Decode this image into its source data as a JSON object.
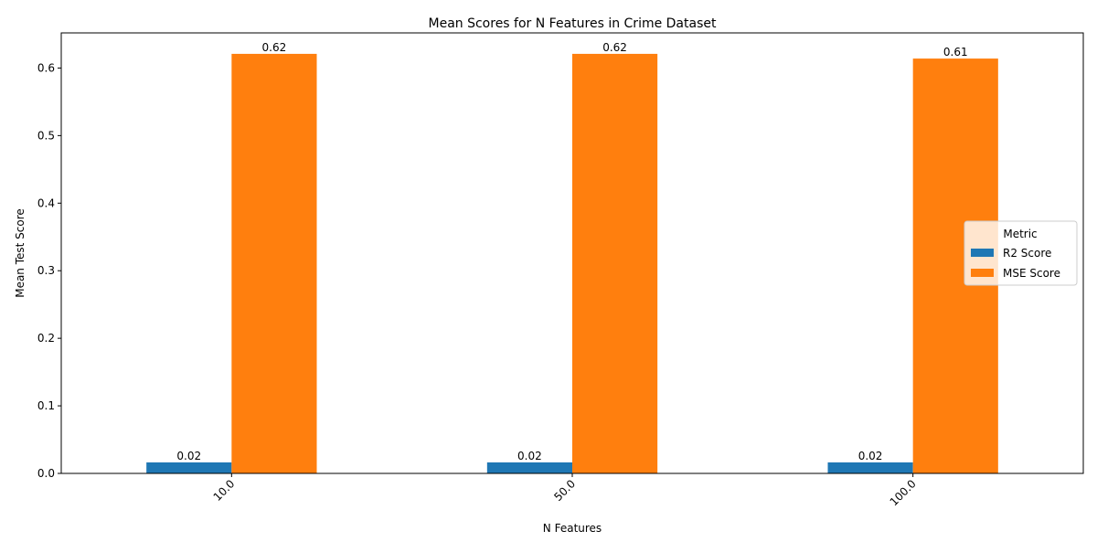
{
  "chart_data": {
    "type": "bar",
    "title": "Mean Scores for N Features in Crime Dataset",
    "xlabel": "N Features",
    "ylabel": "Mean Test Score",
    "categories": [
      "10.0",
      "50.0",
      "100.0"
    ],
    "series": [
      {
        "name": "R2 Score",
        "color": "#1f77b4",
        "values": [
          0.0163,
          0.0163,
          0.0163
        ],
        "labels": [
          "0.02",
          "0.02",
          "0.02"
        ]
      },
      {
        "name": "MSE Score",
        "color": "#ff7f0e",
        "values": [
          0.621,
          0.621,
          0.614
        ],
        "labels": [
          "0.62",
          "0.62",
          "0.61"
        ]
      }
    ],
    "ylim": [
      0,
      0.652
    ],
    "yticks": [
      0.0,
      0.1,
      0.2,
      0.3,
      0.4,
      0.5,
      0.6
    ],
    "ytick_labels": [
      "0.0",
      "0.1",
      "0.2",
      "0.3",
      "0.4",
      "0.5",
      "0.6"
    ],
    "xtick_rotation": 45,
    "grid": false,
    "legend": {
      "title": "Metric",
      "placement": "center-right"
    }
  }
}
